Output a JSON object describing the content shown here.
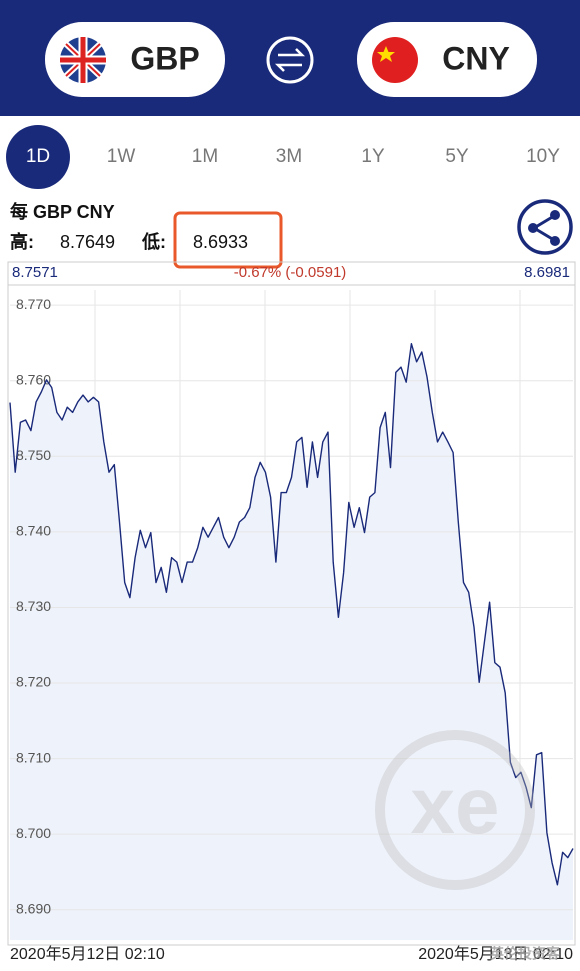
{
  "header": {
    "from": "GBP",
    "to": "CNY"
  },
  "tabs": [
    "1D",
    "1W",
    "1M",
    "3M",
    "1Y",
    "5Y",
    "10Y"
  ],
  "info": {
    "pair": "每 GBP CNY",
    "high_label": "高:",
    "high": 8.7649,
    "low_label": "低:",
    "low": 8.6933
  },
  "chart_data": {
    "type": "line",
    "open": 8.7571,
    "change": "-0.67% (-0.0591)",
    "close": 8.6981,
    "color": "#1a2a7a",
    "fill": "#eef2fa",
    "values": [
      8.7571,
      8.7479,
      8.7545,
      8.7548,
      8.7534,
      8.7572,
      8.7585,
      8.7601,
      8.7591,
      8.7558,
      8.7548,
      8.7565,
      8.7558,
      8.7572,
      8.7581,
      8.7572,
      8.7578,
      8.7572,
      8.7519,
      8.7479,
      8.7489,
      8.7413,
      8.7333,
      8.7313,
      8.7366,
      8.7402,
      8.7379,
      8.7399,
      8.7333,
      8.7353,
      8.732,
      8.7366,
      8.736,
      8.7333,
      8.736,
      8.736,
      8.7379,
      8.7406,
      8.7393,
      8.7406,
      8.7419,
      8.7393,
      8.7379,
      8.7393,
      8.7413,
      8.7419,
      8.7432,
      8.7472,
      8.7492,
      8.7479,
      8.7446,
      8.736,
      8.7452,
      8.7452,
      8.7472,
      8.7519,
      8.7525,
      8.7459,
      8.7519,
      8.7472,
      8.7519,
      8.7532,
      8.736,
      8.7287,
      8.7346,
      8.7439,
      8.7406,
      8.7432,
      8.7399,
      8.7446,
      8.7452,
      8.7538,
      8.7558,
      8.7485,
      8.7611,
      8.7618,
      8.7598,
      8.7649,
      8.7625,
      8.7638,
      8.7605,
      8.7558,
      8.7519,
      8.7532,
      8.7519,
      8.7505,
      8.7413,
      8.7333,
      8.732,
      8.7274,
      8.7201,
      8.7254,
      8.7307,
      8.7227,
      8.7221,
      8.7187,
      8.7095,
      8.7075,
      8.7082,
      8.7062,
      8.7035,
      8.7105,
      8.7108,
      8.7002,
      8.6962,
      8.6933,
      8.6976,
      8.6969,
      8.6981
    ],
    "ylim": [
      8.686,
      8.772
    ],
    "yticks": [
      {
        "value": 8.69,
        "label": "8.690"
      },
      {
        "value": 8.7,
        "label": "8.700"
      },
      {
        "value": 8.71,
        "label": "8.710"
      },
      {
        "value": 8.72,
        "label": "8.720"
      },
      {
        "value": 8.73,
        "label": "8.730"
      },
      {
        "value": 8.74,
        "label": "8.740"
      },
      {
        "value": 8.75,
        "label": "8.750"
      },
      {
        "value": 8.76,
        "label": "8.760"
      },
      {
        "value": 8.77,
        "label": "8.770"
      }
    ],
    "xlabels": [
      "2020年5月12日 02:10",
      "2020年5月13日 02:10"
    ],
    "grid": true
  },
  "watermark": "英伦投资客"
}
